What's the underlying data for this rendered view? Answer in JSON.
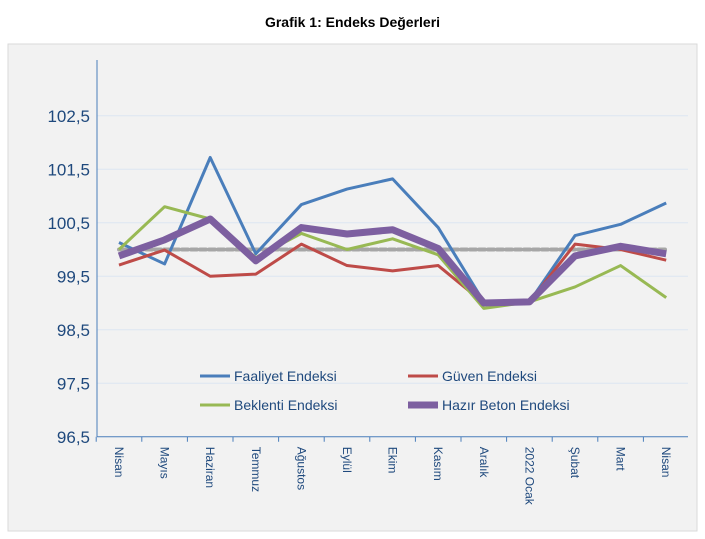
{
  "chart_data": {
    "type": "line",
    "title": "Grafik 1: Endeks Değerleri",
    "categories": [
      "Nisan",
      "Mayıs",
      "Haziran",
      "Temmuz",
      "Ağustos",
      "Eylül",
      "Ekim",
      "Kasım",
      "Aralık",
      "2022 Ocak",
      "Şubat",
      "Mart",
      "Nisan"
    ],
    "ylim": [
      96.5,
      102.5
    ],
    "yticks": [
      "96,5",
      "97,5",
      "98,5",
      "99,5",
      "100,5",
      "101,5",
      "102,5"
    ],
    "ytick_values": [
      96.5,
      97.5,
      98.5,
      99.5,
      100.5,
      101.5,
      102.5
    ],
    "grid": true,
    "legend_placement": "bottom-center inside",
    "reference_line": {
      "value": 100,
      "color": "#a6a6a6",
      "style": "dashed"
    },
    "series": [
      {
        "name": "Faaliyet Endeksi",
        "color": "#4a7ebb",
        "width": 3,
        "values": [
          100.13,
          99.73,
          101.72,
          99.92,
          100.84,
          101.13,
          101.32,
          100.41,
          99.02,
          99.02,
          100.26,
          100.47,
          100.87
        ]
      },
      {
        "name": "Güven Endeksi",
        "color": "#be4b48",
        "width": 3,
        "values": [
          99.71,
          99.99,
          99.5,
          99.54,
          100.1,
          99.7,
          99.6,
          99.7,
          99.0,
          99.02,
          100.1,
          100.0,
          99.8
        ]
      },
      {
        "name": "Beklenti Endeksi",
        "color": "#98b954",
        "width": 3,
        "values": [
          100.0,
          100.8,
          100.57,
          99.85,
          100.3,
          100.0,
          100.2,
          99.9,
          98.9,
          99.02,
          99.3,
          99.7,
          99.1
        ]
      },
      {
        "name": "Hazır Beton Endeksi",
        "color": "#7d5fa0",
        "width": 7,
        "values": [
          99.88,
          100.18,
          100.57,
          99.79,
          100.41,
          100.29,
          100.37,
          100.02,
          99.0,
          99.02,
          99.88,
          100.06,
          99.92
        ]
      }
    ],
    "axis_label_color": "#1f497d",
    "plot_background": "#f2f2f2",
    "gridline_color": "#dce6f2"
  }
}
